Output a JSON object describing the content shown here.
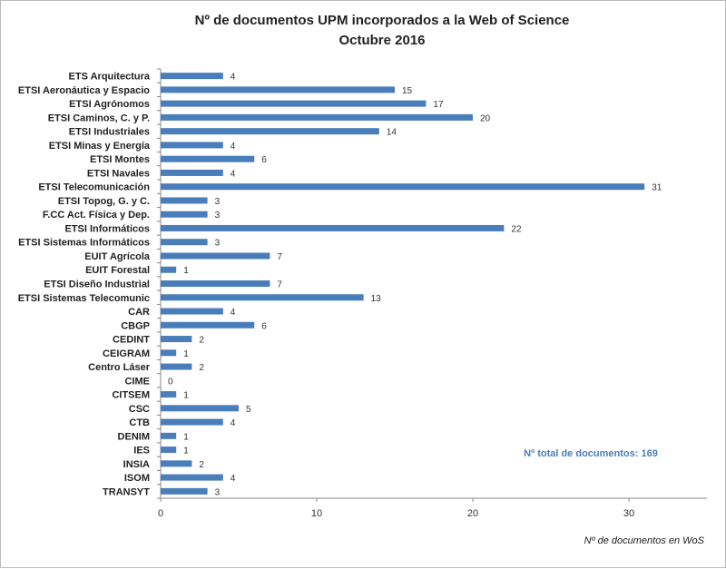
{
  "chart_data": {
    "type": "bar",
    "orientation": "horizontal",
    "title": "Nº de documentos UPM incorporados a la Web of Science",
    "subtitle": "Octubre 2016",
    "xlabel": "Nº de documentos en WoS",
    "ylabel": "",
    "xlim": [
      0,
      35
    ],
    "xticks": [
      0,
      10,
      20,
      30
    ],
    "grid": false,
    "annotation": "Nº total  de documentos:  169",
    "bar_color": "#4a7ebb",
    "categories": [
      "ETS Arquitectura",
      "ETSI Aeronáutica y Espacio",
      "ETSI Agrónomos",
      "ETSI Caminos, C. y P.",
      "ETSI Industriales",
      "ETSI Minas y Energía",
      "ETSI Montes",
      "ETSI Navales",
      "ETSI Telecomunicación",
      "ETSI Topog, G. y C.",
      "F.CC Act. Física y Dep.",
      "ETSI Informáticos",
      "ETSI Sistemas Informáticos",
      "EUIT Agrícola",
      "EUIT Forestal",
      "ETSI Diseño Industrial",
      "ETSI Sistemas Telecomunic",
      "CAR",
      "CBGP",
      "CEDINT",
      "CEIGRAM",
      "Centro Láser",
      "CIME",
      "CITSEM",
      "CSC",
      "CTB",
      "DENIM",
      "IES",
      "INSIA",
      "ISOM",
      "TRANSYT"
    ],
    "values": [
      4,
      15,
      17,
      20,
      14,
      4,
      6,
      4,
      31,
      3,
      3,
      22,
      3,
      7,
      1,
      7,
      13,
      4,
      6,
      2,
      1,
      2,
      0,
      1,
      5,
      4,
      1,
      1,
      2,
      4,
      3
    ]
  }
}
